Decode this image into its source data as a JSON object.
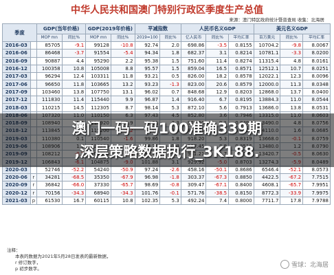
{
  "title": "中华人民共和国澳门特别行政区季度生产总值",
  "source": "来源：澳门特区政府统计暨普查局    收集：北海居",
  "header": {
    "quarter": "季度",
    "gdp_current": "GDP(当年价格)",
    "gdp_2019": "GDP(2019年价格)",
    "deflator": "平减指数",
    "gdp_rmb": "人民币名义GDP",
    "gdp_usd": "美元名义GDP",
    "sub": [
      "MOP mn",
      "同比%",
      "MOP mn",
      "同比%",
      "2019=100",
      "同比%",
      "亿人民币",
      "同比%",
      "平均汇率",
      "百万美元",
      "同比%",
      "平均汇率"
    ]
  },
  "rows": [
    {
      "q": "2016-03",
      "p": "",
      "v": [
        "85705",
        "-9.1",
        "99128",
        "-10.8",
        "92.74",
        "2.0",
        "698.86",
        "-3.5",
        "0.8155",
        "10704.2",
        "-9.8",
        "8.0067"
      ]
    },
    {
      "q": "2016-06",
      "p": "",
      "v": [
        "86468",
        "-3.7",
        "91554",
        "-5.4",
        "94.34",
        "1.8",
        "682.37",
        "3.1",
        "0.8214",
        "10781.1",
        "-3.3",
        "8.0200"
      ]
    },
    {
      "q": "2016-09",
      "p": "",
      "v": [
        "90887",
        "4.4",
        "95290",
        "2.2",
        "95.38",
        "1.5",
        "751.60",
        "11.4",
        "0.8274",
        "11315.4",
        "4.8",
        "8.0161"
      ]
    },
    {
      "q": "2016-12",
      "p": "",
      "v": [
        "100358",
        "10.8",
        "105008",
        "8.8",
        "95.57",
        "1.5",
        "859.04",
        "16.5",
        "0.8571",
        "12512.1",
        "10.7",
        "8.0251"
      ]
    },
    {
      "q": "2017-03",
      "p": "",
      "v": [
        "96294",
        "12.4",
        "103311",
        "11.8",
        "93.21",
        "0.5",
        "826.00",
        "18.2",
        "0.8578",
        "12022.1",
        "12.3",
        "8.0096"
      ]
    },
    {
      "q": "2017-06",
      "p": "",
      "v": [
        "96650",
        "11.8",
        "103665",
        "13.2",
        "93.23",
        "-1.3",
        "823.00",
        "20.6",
        "0.8579",
        "12000.0",
        "11.3",
        "8.0348"
      ]
    },
    {
      "q": "2017-09",
      "p": "",
      "v": [
        "103460",
        "13.8",
        "107750",
        "13.1",
        "96.02",
        "0.7",
        "848.68",
        "12.9",
        "0.8203",
        "12868.0",
        "13.7",
        "8.0400"
      ]
    },
    {
      "q": "2017-12",
      "p": "",
      "v": [
        "111830",
        "11.4",
        "115440",
        "9.9",
        "96.87",
        "1.4",
        "916.40",
        "6.7",
        "0.8195",
        "13884.3",
        "11.0",
        "8.0544"
      ]
    },
    {
      "q": "2018-03",
      "p": "",
      "v": [
        "110215",
        "14.5",
        "112305",
        "8.7",
        "98.14",
        "5.3",
        "872.10",
        "5.6",
        "0.7913",
        "13686.0",
        "13.8",
        "8.0531"
      ]
    },
    {
      "q": "2018-06",
      "p": "",
      "v": [
        "107320",
        "11.0",
        "110150",
        "6.3",
        "97.43",
        "4.5",
        "852.80",
        "3.6",
        "0.7946",
        "13315.0",
        "11.0",
        "8.0603"
      ]
    },
    {
      "q": "2018-09",
      "p": "",
      "v": [
        "108940",
        "5.3",
        "110920",
        "2.9",
        "98.21",
        "2.3",
        "925.50",
        "9.1",
        "0.8495",
        "13490.0",
        "4.8",
        "8.0756"
      ]
    },
    {
      "q": "2018-12",
      "p": "",
      "v": [
        "113845",
        "1.8",
        "115200",
        "-0.2",
        "98.82",
        "2.0",
        "979.30",
        "6.9",
        "0.8602",
        "14110.0",
        "1.6",
        "8.0685"
      ]
    },
    {
      "q": "2019-03",
      "p": "",
      "v": [
        "110380",
        "0.1",
        "110540",
        "-1.6",
        "99.86",
        "1.8",
        "918.20",
        "5.3",
        "0.8319",
        "13668.0",
        "-0.1",
        "8.0759"
      ]
    },
    {
      "q": "2019-06",
      "p": "",
      "v": [
        "108906",
        "1.5",
        "110275",
        "0.1",
        "98.76",
        "1.4",
        "927.45",
        "8.8",
        "0.8516",
        "13480.0",
        "1.2",
        "8.0790"
      ]
    },
    {
      "q": "2019-09",
      "p": "",
      "v": [
        "108212",
        "-0.7",
        "108810",
        "-1.9",
        "99.45",
        "1.3",
        "941.21",
        "1.7",
        "0.8698",
        "13420.7",
        "-0.5",
        "8.0630"
      ]
    },
    {
      "q": "2019-12",
      "p": "",
      "v": [
        "106843",
        "-6.1",
        "104875",
        "-9.0",
        "101.88",
        "3.1",
        "929.92",
        "-5.0",
        "0.8703",
        "13274.3",
        "-5.9",
        "8.0489"
      ]
    },
    {
      "q": "2020-03",
      "p": "",
      "v": [
        "52746",
        "-52.2",
        "54240",
        "-50.9",
        "97.24",
        "-2.6",
        "458.16",
        "-50.1",
        "0.8686",
        "6546.4",
        "-52.1",
        "8.0573"
      ]
    },
    {
      "q": "2020-06",
      "p": "r",
      "v": [
        "34281",
        "-68.5",
        "35350",
        "-67.9",
        "96.98",
        "-1.8",
        "303.37",
        "-67.3",
        "0.8850",
        "4422.5",
        "-67.2",
        "7.7515"
      ]
    },
    {
      "q": "2020-09",
      "p": "r",
      "v": [
        "36842",
        "-66.0",
        "37330",
        "-65.7",
        "98.69",
        "-0.8",
        "309.47",
        "-67.1",
        "0.8400",
        "4608.1",
        "-65.7",
        "7.9951"
      ]
    },
    {
      "q": "2020-12",
      "p": "r",
      "v": [
        "70156",
        "-34.3",
        "68940",
        "-34.3",
        "101.76",
        "-0.1",
        "571.76",
        "-38.5",
        "0.8150",
        "8772.3",
        "-33.9",
        "7.9975"
      ]
    },
    {
      "q": "2021-03",
      "p": "p",
      "v": [
        "61530",
        "16.7",
        "60115",
        "10.8",
        "102.35",
        "5.3",
        "492.24",
        "7.4",
        "0.8000",
        "7711.7",
        "17.8",
        "7.9788"
      ]
    }
  ],
  "notes": [
    "注释：",
    "本表的数据为2021年5月28日发表的最新数据，",
    "r  修订数字，",
    "p  初步数字。"
  ],
  "overlay": {
    "line1": "澳门一码一码100准确339期",
    "line2": ",深层策略数据执行_3K188."
  },
  "watermark": "雪球：北海居"
}
